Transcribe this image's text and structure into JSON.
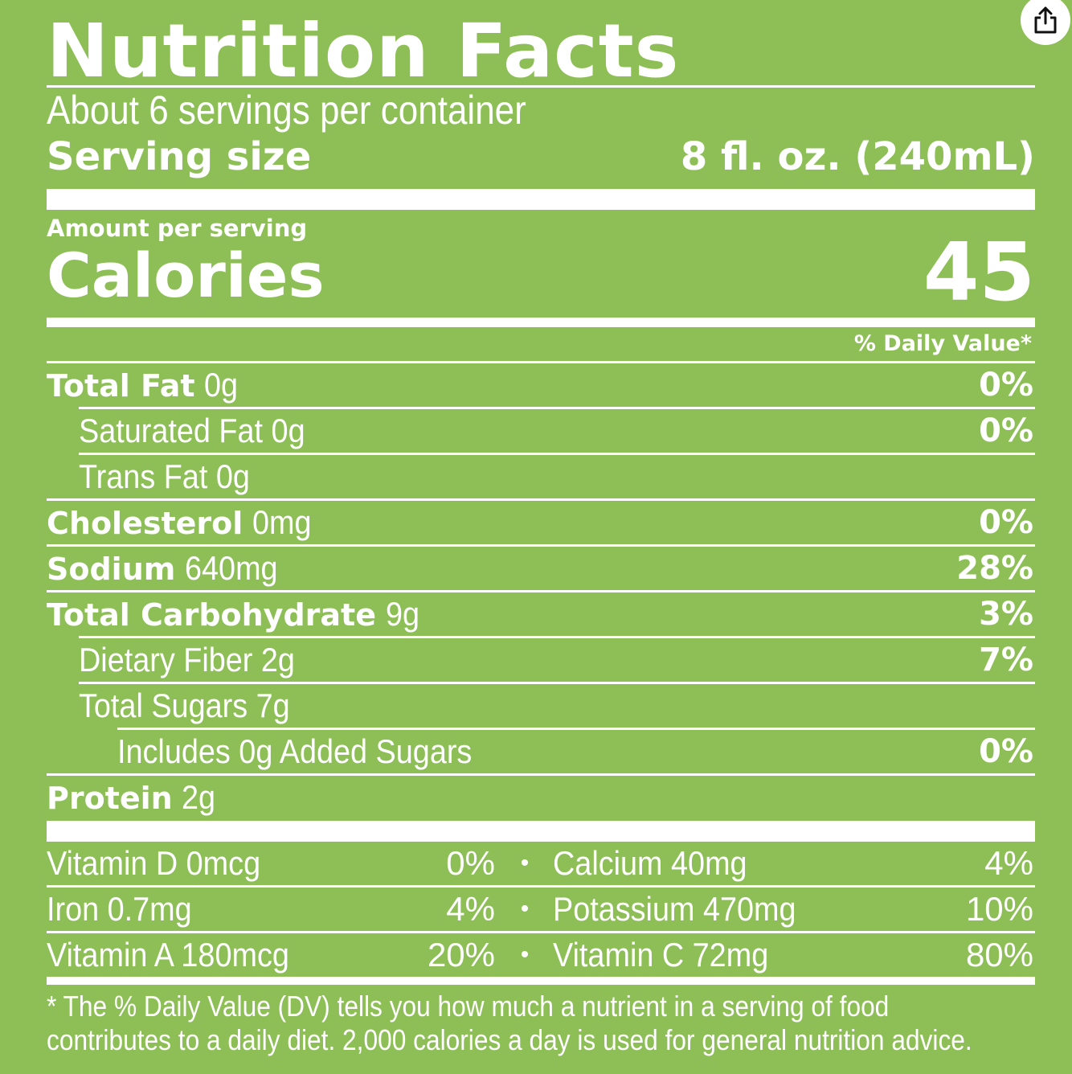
{
  "header": {
    "title": "Nutrition Facts",
    "servings": "About 6 servings per container",
    "serving_size_label": "Serving size",
    "serving_size_value": "8 fl. oz. (240mL)"
  },
  "calories": {
    "amount_per_serving": "Amount per serving",
    "label": "Calories",
    "value": "45"
  },
  "daily_value_header": "% Daily Value*",
  "nutrients": [
    {
      "name": "Total Fat",
      "amount": "0g",
      "dv": "0%"
    },
    {
      "name": "Saturated Fat",
      "amount": "0g",
      "dv": "0%"
    },
    {
      "name": "Trans Fat",
      "amount": "0g",
      "dv": ""
    },
    {
      "name": "Cholesterol",
      "amount": "0mg",
      "dv": "0%"
    },
    {
      "name": "Sodium",
      "amount": "640mg",
      "dv": "28%"
    },
    {
      "name": "Total Carbohydrate",
      "amount": "9g",
      "dv": "3%"
    },
    {
      "name": "Dietary Fiber",
      "amount": "2g",
      "dv": "7%"
    },
    {
      "name": "Total Sugars",
      "amount": "7g",
      "dv": ""
    },
    {
      "name": "Includes 0g Added Sugars",
      "amount": "",
      "dv": "0%"
    },
    {
      "name": "Protein",
      "amount": "2g",
      "dv": ""
    }
  ],
  "vitamins": [
    {
      "left_name": "Vitamin D 0mcg",
      "left_dv": "0%",
      "right_name": "Calcium 40mg",
      "right_dv": "4%"
    },
    {
      "left_name": "Iron 0.7mg",
      "left_dv": "4%",
      "right_name": "Potassium 470mg",
      "right_dv": "10%"
    },
    {
      "left_name": "Vitamin A 180mcg",
      "left_dv": "20%",
      "right_name": "Vitamin C 72mg",
      "right_dv": "80%"
    }
  ],
  "separator": "•",
  "footnote": {
    "line1": "* The % Daily Value (DV) tells you how much a nutrient in a serving of food",
    "line2": "contributes to a daily diet. 2,000 calories a day is used for general nutrition advice."
  },
  "icons": {
    "share": "share-icon"
  },
  "colors": {
    "background": "#8dbf56",
    "text": "#ffffff"
  }
}
